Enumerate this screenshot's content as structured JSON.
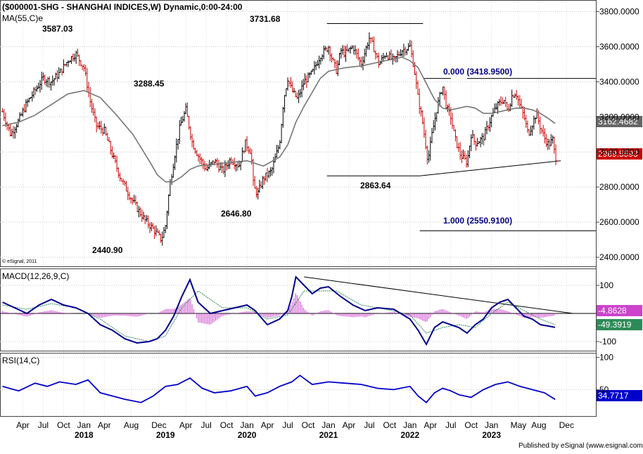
{
  "chart_data": [
    {
      "type": "line",
      "title": "($000001-SHG - SHANGHAI INDICES,W) Dynamic,0:00-24:00",
      "indicator_label": "MA(55,C)e",
      "watermark": "© eSignal, 2011",
      "ylim": [
        2360,
        3850
      ],
      "yticks": [
        2400,
        2600,
        2800,
        3000,
        3200,
        3400,
        3600,
        3800
      ],
      "ytick_labels": [
        "2400.0000",
        "2600.0000",
        "2800.0000",
        "3000.0000",
        "3200.0000",
        "3400.0000",
        "3600.0000",
        "3800.0000"
      ],
      "last_price": "2969.5593",
      "ma_value": "3162.4682",
      "grid": true,
      "series": [
        {
          "kind": "price",
          "color": "#cc0000",
          "x": [
            2017.0,
            2017.1,
            2017.2,
            2017.3,
            2017.4,
            2017.5,
            2017.6,
            2017.7,
            2017.8,
            2017.9,
            2018.0,
            2018.08,
            2018.15,
            2018.25,
            2018.35,
            2018.45,
            2018.55,
            2018.65,
            2018.75,
            2018.85,
            2018.95,
            2019.0,
            2019.05,
            2019.12,
            2019.18,
            2019.25,
            2019.33,
            2019.4,
            2019.5,
            2019.6,
            2019.7,
            2019.8,
            2019.9,
            2019.98,
            2020.05,
            2020.08,
            2020.13,
            2020.2,
            2020.3,
            2020.4,
            2020.45,
            2020.5,
            2020.55,
            2020.62,
            2020.7,
            2020.8,
            2020.9,
            2021.0,
            2021.05,
            2021.1,
            2021.15,
            2021.2,
            2021.3,
            2021.4,
            2021.5,
            2021.55,
            2021.62,
            2021.7,
            2021.8,
            2021.9,
            2022.0,
            2022.05,
            2022.1,
            2022.15,
            2022.22,
            2022.27,
            2022.33,
            2022.4,
            2022.45,
            2022.5,
            2022.55,
            2022.62,
            2022.7,
            2022.75,
            2022.8,
            2022.9,
            2023.0,
            2023.05,
            2023.1,
            2023.15,
            2023.2,
            2023.25,
            2023.3,
            2023.35,
            2023.4,
            2023.45,
            2023.5,
            2023.55,
            2023.6,
            2023.65,
            2023.7,
            2023.75,
            2023.78
          ],
          "y": [
            3230,
            3100,
            3180,
            3280,
            3350,
            3420,
            3400,
            3450,
            3520,
            3560,
            3480,
            3280,
            3150,
            3120,
            2980,
            2850,
            2760,
            2680,
            2610,
            2560,
            2500,
            2580,
            2800,
            3000,
            3150,
            3240,
            3050,
            2980,
            2900,
            2950,
            2890,
            2960,
            2920,
            3050,
            3000,
            2800,
            2760,
            2850,
            2890,
            3050,
            3300,
            3420,
            3350,
            3300,
            3400,
            3450,
            3550,
            3600,
            3520,
            3460,
            3580,
            3560,
            3600,
            3500,
            3650,
            3600,
            3500,
            3560,
            3520,
            3580,
            3600,
            3480,
            3300,
            3180,
            2950,
            3100,
            3250,
            3380,
            3250,
            3200,
            3080,
            2980,
            2940,
            3100,
            3050,
            3080,
            3200,
            3250,
            3280,
            3300,
            3230,
            3320,
            3340,
            3260,
            3200,
            3100,
            3160,
            3220,
            3140,
            3080,
            3040,
            3070,
            2969.56
          ]
        },
        {
          "kind": "ma",
          "name": "MA(55,C)e",
          "color": "#777777",
          "x": [
            2017.0,
            2017.2,
            2017.4,
            2017.6,
            2017.8,
            2018.0,
            2018.2,
            2018.4,
            2018.6,
            2018.8,
            2018.9,
            2019.0,
            2019.1,
            2019.2,
            2019.3,
            2019.4,
            2019.6,
            2019.8,
            2020.0,
            2020.2,
            2020.4,
            2020.5,
            2020.6,
            2020.7,
            2020.8,
            2020.9,
            2021.0,
            2021.2,
            2021.4,
            2021.6,
            2021.8,
            2021.9,
            2022.0,
            2022.1,
            2022.2,
            2022.3,
            2022.4,
            2022.5,
            2022.6,
            2022.7,
            2022.8,
            2022.9,
            2023.0,
            2023.1,
            2023.2,
            2023.3,
            2023.4,
            2023.5,
            2023.6,
            2023.7,
            2023.78
          ],
          "y": [
            3150,
            3170,
            3210,
            3270,
            3330,
            3350,
            3310,
            3210,
            3100,
            2950,
            2870,
            2830,
            2830,
            2860,
            2900,
            2920,
            2930,
            2940,
            2950,
            2920,
            2970,
            3040,
            3170,
            3260,
            3340,
            3420,
            3460,
            3480,
            3490,
            3510,
            3530,
            3540,
            3520,
            3480,
            3390,
            3300,
            3250,
            3240,
            3250,
            3260,
            3250,
            3220,
            3220,
            3230,
            3240,
            3250,
            3250,
            3240,
            3220,
            3190,
            3162.47
          ]
        }
      ],
      "annotations": [
        {
          "text": "3587.03",
          "x": 2017.45,
          "y": 3587.03
        },
        {
          "text": "3288.45",
          "x": 2019.23,
          "y": 3288.45
        },
        {
          "text": "3731.68",
          "x": 2020.98,
          "y": 3731.68
        },
        {
          "text": "2440.90",
          "x": 2018.96,
          "y": 2440.9
        },
        {
          "text": "2646.80",
          "x": 2020.11,
          "y": 2646.8
        },
        {
          "text": "2863.64",
          "x": 2022.12,
          "y": 2863.64
        },
        {
          "text": "0.000 (3418.9500)",
          "y": 3418.95
        },
        {
          "text": "1.000 (2550.9100)",
          "y": 2550.91
        }
      ]
    },
    {
      "type": "line",
      "title": "MACD(12,26,9,C)",
      "ylim": [
        -130,
        155
      ],
      "yticks": [
        100,
        -100
      ],
      "ytick_labels": [
        "100",
        "-100"
      ],
      "value_labels": [
        "-4.8628",
        "-49.3919"
      ],
      "series": [
        {
          "kind": "macd",
          "color": "#00008b",
          "x": [
            2017.0,
            2017.15,
            2017.3,
            2017.45,
            2017.6,
            2017.75,
            2017.9,
            2018.05,
            2018.2,
            2018.35,
            2018.5,
            2018.65,
            2018.8,
            2018.9,
            2019.0,
            2019.1,
            2019.2,
            2019.3,
            2019.4,
            2019.55,
            2019.7,
            2019.85,
            2020.0,
            2020.1,
            2020.25,
            2020.4,
            2020.5,
            2020.55,
            2020.6,
            2020.7,
            2020.8,
            2020.9,
            2021.0,
            2021.15,
            2021.3,
            2021.45,
            2021.6,
            2021.8,
            2022.0,
            2022.1,
            2022.2,
            2022.3,
            2022.4,
            2022.5,
            2022.6,
            2022.7,
            2022.8,
            2022.9,
            2023.0,
            2023.1,
            2023.2,
            2023.3,
            2023.4,
            2023.5,
            2023.6,
            2023.7,
            2023.78
          ],
          "y": [
            40,
            20,
            0,
            30,
            50,
            30,
            20,
            0,
            -40,
            -60,
            -90,
            -105,
            -100,
            -90,
            -60,
            -10,
            60,
            120,
            40,
            0,
            10,
            20,
            30,
            10,
            -40,
            -20,
            10,
            60,
            130,
            100,
            70,
            90,
            95,
            60,
            30,
            10,
            20,
            15,
            -20,
            -60,
            -110,
            -50,
            -30,
            -40,
            -50,
            -70,
            -40,
            -20,
            20,
            40,
            50,
            20,
            -10,
            -20,
            -40,
            -45,
            -49.39
          ]
        },
        {
          "kind": "signal",
          "color": "#2e8b57",
          "x": [
            2017.0,
            2017.3,
            2017.6,
            2017.9,
            2018.2,
            2018.5,
            2018.8,
            2019.0,
            2019.2,
            2019.4,
            2019.7,
            2020.0,
            2020.25,
            2020.5,
            2020.7,
            2020.9,
            2021.1,
            2021.4,
            2021.7,
            2022.0,
            2022.2,
            2022.4,
            2022.6,
            2022.8,
            2023.0,
            2023.2,
            2023.4,
            2023.6,
            2023.78
          ],
          "y": [
            30,
            15,
            35,
            20,
            -20,
            -80,
            -100,
            -80,
            20,
            80,
            20,
            20,
            -20,
            -5,
            80,
            80,
            80,
            30,
            15,
            -5,
            -70,
            -50,
            -40,
            -50,
            0,
            40,
            10,
            -20,
            -40
          ]
        },
        {
          "kind": "histogram",
          "color": "#cc44cc"
        }
      ]
    },
    {
      "type": "line",
      "title": "RSI(14,C)",
      "ylim": [
        10,
        105
      ],
      "yticks": [
        100,
        50
      ],
      "ytick_labels": [
        "100",
        "50"
      ],
      "value_labels": [
        "34.7717"
      ],
      "series": [
        {
          "kind": "rsi",
          "color": "#0000cc",
          "x": [
            2017.0,
            2017.2,
            2017.4,
            2017.55,
            2017.7,
            2017.9,
            2018.05,
            2018.2,
            2018.35,
            2018.5,
            2018.7,
            2018.85,
            2019.0,
            2019.15,
            2019.3,
            2019.45,
            2019.6,
            2019.8,
            2020.0,
            2020.1,
            2020.25,
            2020.4,
            2020.55,
            2020.65,
            2020.8,
            2021.0,
            2021.2,
            2021.4,
            2021.6,
            2021.8,
            2022.0,
            2022.1,
            2022.2,
            2022.3,
            2022.4,
            2022.5,
            2022.6,
            2022.75,
            2022.9,
            2023.05,
            2023.2,
            2023.35,
            2023.5,
            2023.65,
            2023.78
          ],
          "y": [
            55,
            48,
            60,
            55,
            62,
            58,
            65,
            45,
            40,
            35,
            30,
            40,
            55,
            58,
            68,
            52,
            45,
            48,
            55,
            40,
            45,
            55,
            62,
            72,
            58,
            62,
            60,
            58,
            52,
            50,
            55,
            40,
            30,
            45,
            52,
            48,
            42,
            38,
            50,
            58,
            62,
            55,
            50,
            45,
            34.77
          ]
        }
      ]
    }
  ],
  "x_axis": {
    "tick_labels": [
      "Apr",
      "Jul",
      "Oct",
      "Jan",
      "Apr",
      "Aug",
      "Dec",
      "Apr",
      "Jul",
      "Oct",
      "Jan",
      "Apr",
      "Jul",
      "Oct",
      "Jan",
      "Apr",
      "Jul",
      "Oct",
      "Jan",
      "Apr",
      "Jul",
      "Oct",
      "Jan",
      "May",
      "Aug",
      "Dec"
    ],
    "tick_values": [
      2017.25,
      2017.5,
      2017.75,
      2018.0,
      2018.25,
      2018.58,
      2018.92,
      2019.25,
      2019.5,
      2019.75,
      2020.0,
      2020.25,
      2020.5,
      2020.75,
      2021.0,
      2021.25,
      2021.5,
      2021.75,
      2022.0,
      2022.25,
      2022.5,
      2022.75,
      2023.0,
      2023.33,
      2023.58,
      2023.92
    ],
    "year_labels": [
      "2018",
      "2019",
      "2020",
      "2021",
      "2022",
      "2023"
    ],
    "year_values": [
      2018.0,
      2019.0,
      2020.0,
      2021.0,
      2022.0,
      2023.0
    ]
  },
  "footer": "Published by eSignal (www.esignal.com)"
}
